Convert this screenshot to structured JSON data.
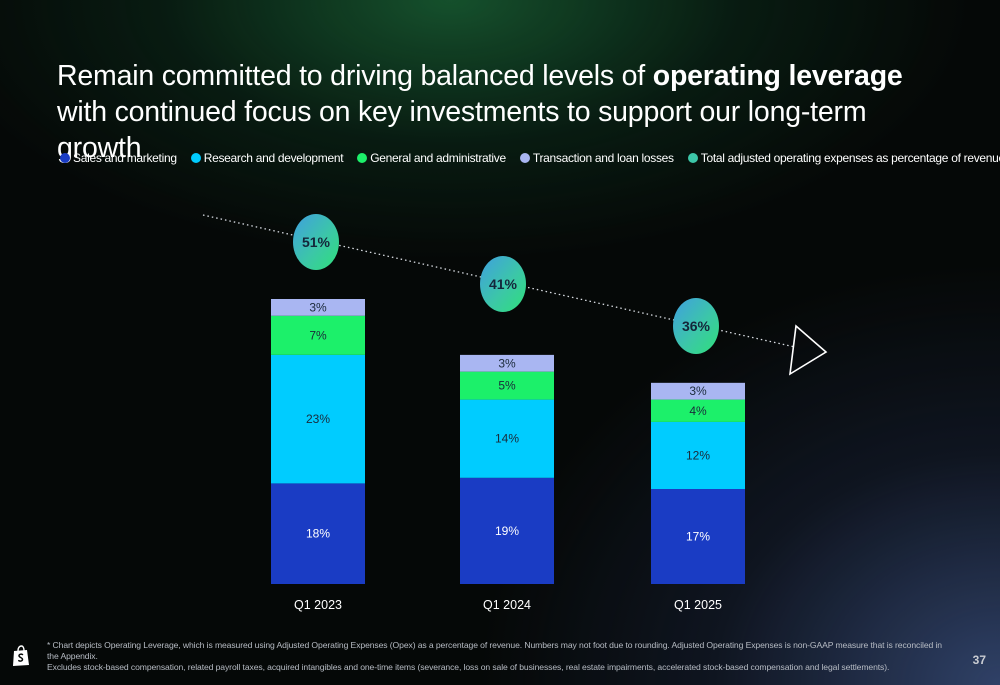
{
  "slide": {
    "title_part1": "Remain committed to driving balanced levels of ",
    "title_bold": "operating leverage",
    "title_part2": " with continued focus on key investments to support our long-term growth",
    "footnote_line1": "* Chart depicts Operating Leverage, which is measured using Adjusted Operating Expenses (Opex) as a percentage of revenue. Numbers may not foot due to rounding. Adjusted Operating Expenses is non-GAAP measure that is reconciled in the Appendix.",
    "footnote_line2": "Excludes stock-based compensation, related payroll taxes, acquired intangibles and one-time items (severance, loss on sale of businesses, real estate impairments, accelerated stock-based compensation and legal settlements).",
    "page_number": "37",
    "logo_icon": "shopping-bag-icon"
  },
  "legend": [
    {
      "label": "Sales and marketing",
      "color": "#1a3cc4"
    },
    {
      "label": "Research and development",
      "color": "#00ccff"
    },
    {
      "label": "General and administrative",
      "color": "#1cf06a"
    },
    {
      "label": "Transaction and loan losses",
      "color": "#a9b6f2"
    },
    {
      "label": "Total adjusted operating expenses as percentage of revenue",
      "color": "#3cc6a8"
    }
  ],
  "chart_data": {
    "type": "bar",
    "stacked": true,
    "categories": [
      "Q1 2023",
      "Q1 2024",
      "Q1 2025"
    ],
    "series": [
      {
        "name": "Sales and marketing",
        "values": [
          18,
          19,
          17
        ],
        "labels": [
          "18%",
          "19%",
          "17%"
        ],
        "color": "#1a3cc4"
      },
      {
        "name": "Research and development",
        "values": [
          23,
          14,
          12
        ],
        "labels": [
          "23%",
          "14%",
          "12%"
        ],
        "color": "#00ccff"
      },
      {
        "name": "General and administrative",
        "values": [
          7,
          5,
          4
        ],
        "labels": [
          "7%",
          "5%",
          "4%"
        ],
        "color": "#1cf06a"
      },
      {
        "name": "Transaction and loan losses",
        "values": [
          3,
          3,
          3
        ],
        "labels": [
          "3%",
          "3%",
          "3%"
        ],
        "color": "#a9b6f2"
      }
    ],
    "totals": {
      "name": "Total adjusted operating expenses as percentage of revenue",
      "values": [
        51,
        41,
        36
      ],
      "labels": [
        "51%",
        "41%",
        "36%"
      ]
    },
    "trend_arrow": true,
    "ylim": [
      0,
      51
    ],
    "grid": false,
    "legend_position": "top"
  }
}
